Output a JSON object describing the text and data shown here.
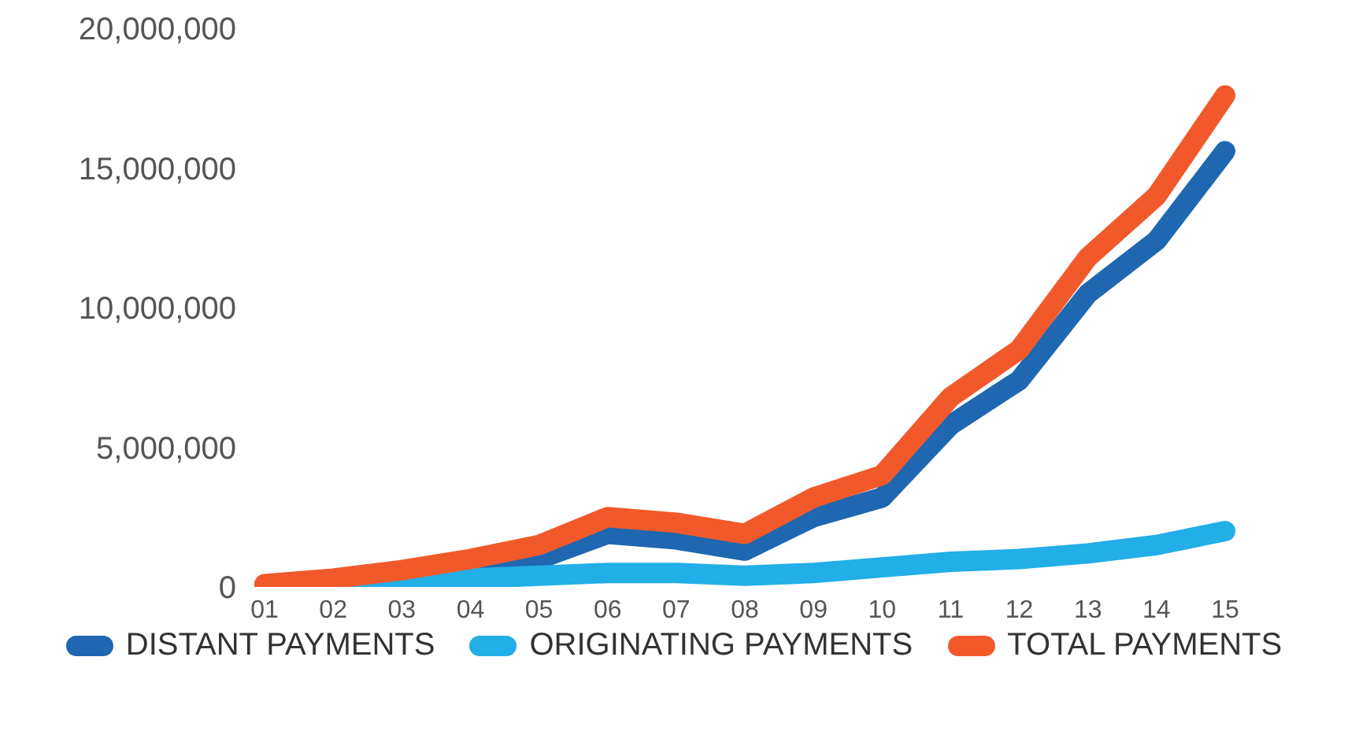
{
  "chart_data": {
    "type": "line",
    "categories": [
      "01",
      "02",
      "03",
      "04",
      "05",
      "06",
      "07",
      "08",
      "09",
      "10",
      "11",
      "12",
      "13",
      "14",
      "15"
    ],
    "series": [
      {
        "name": "DISTANT PAYMENTS",
        "color": "#1f67b1",
        "values": [
          50000,
          150000,
          300000,
          600000,
          1000000,
          1900000,
          1700000,
          1300000,
          2500000,
          3200000,
          5800000,
          7400000,
          10500000,
          12400000,
          15600000
        ]
      },
      {
        "name": "ORIGINATING PAYMENTS",
        "color": "#22aee6",
        "values": [
          50000,
          100000,
          200000,
          300000,
          400000,
          500000,
          500000,
          400000,
          500000,
          700000,
          900000,
          1000000,
          1200000,
          1500000,
          2000000
        ]
      },
      {
        "name": "TOTAL PAYMENTS",
        "color": "#f2592a",
        "values": [
          100000,
          300000,
          600000,
          1000000,
          1500000,
          2500000,
          2300000,
          1900000,
          3200000,
          4000000,
          6800000,
          8500000,
          11800000,
          14000000,
          17600000
        ]
      }
    ],
    "ylim": [
      0,
      20000000
    ],
    "yticks": [
      0,
      {
        "value": 5000000,
        "label": "5,000,000"
      },
      {
        "value": 10000000,
        "label": "10,000,000"
      },
      {
        "value": 15000000,
        "label": "15,000,000"
      },
      {
        "value": 20000000,
        "label": "20,000,000"
      }
    ],
    "grid": false,
    "legend": "bottom",
    "marker": "none",
    "line_style": "solid"
  }
}
